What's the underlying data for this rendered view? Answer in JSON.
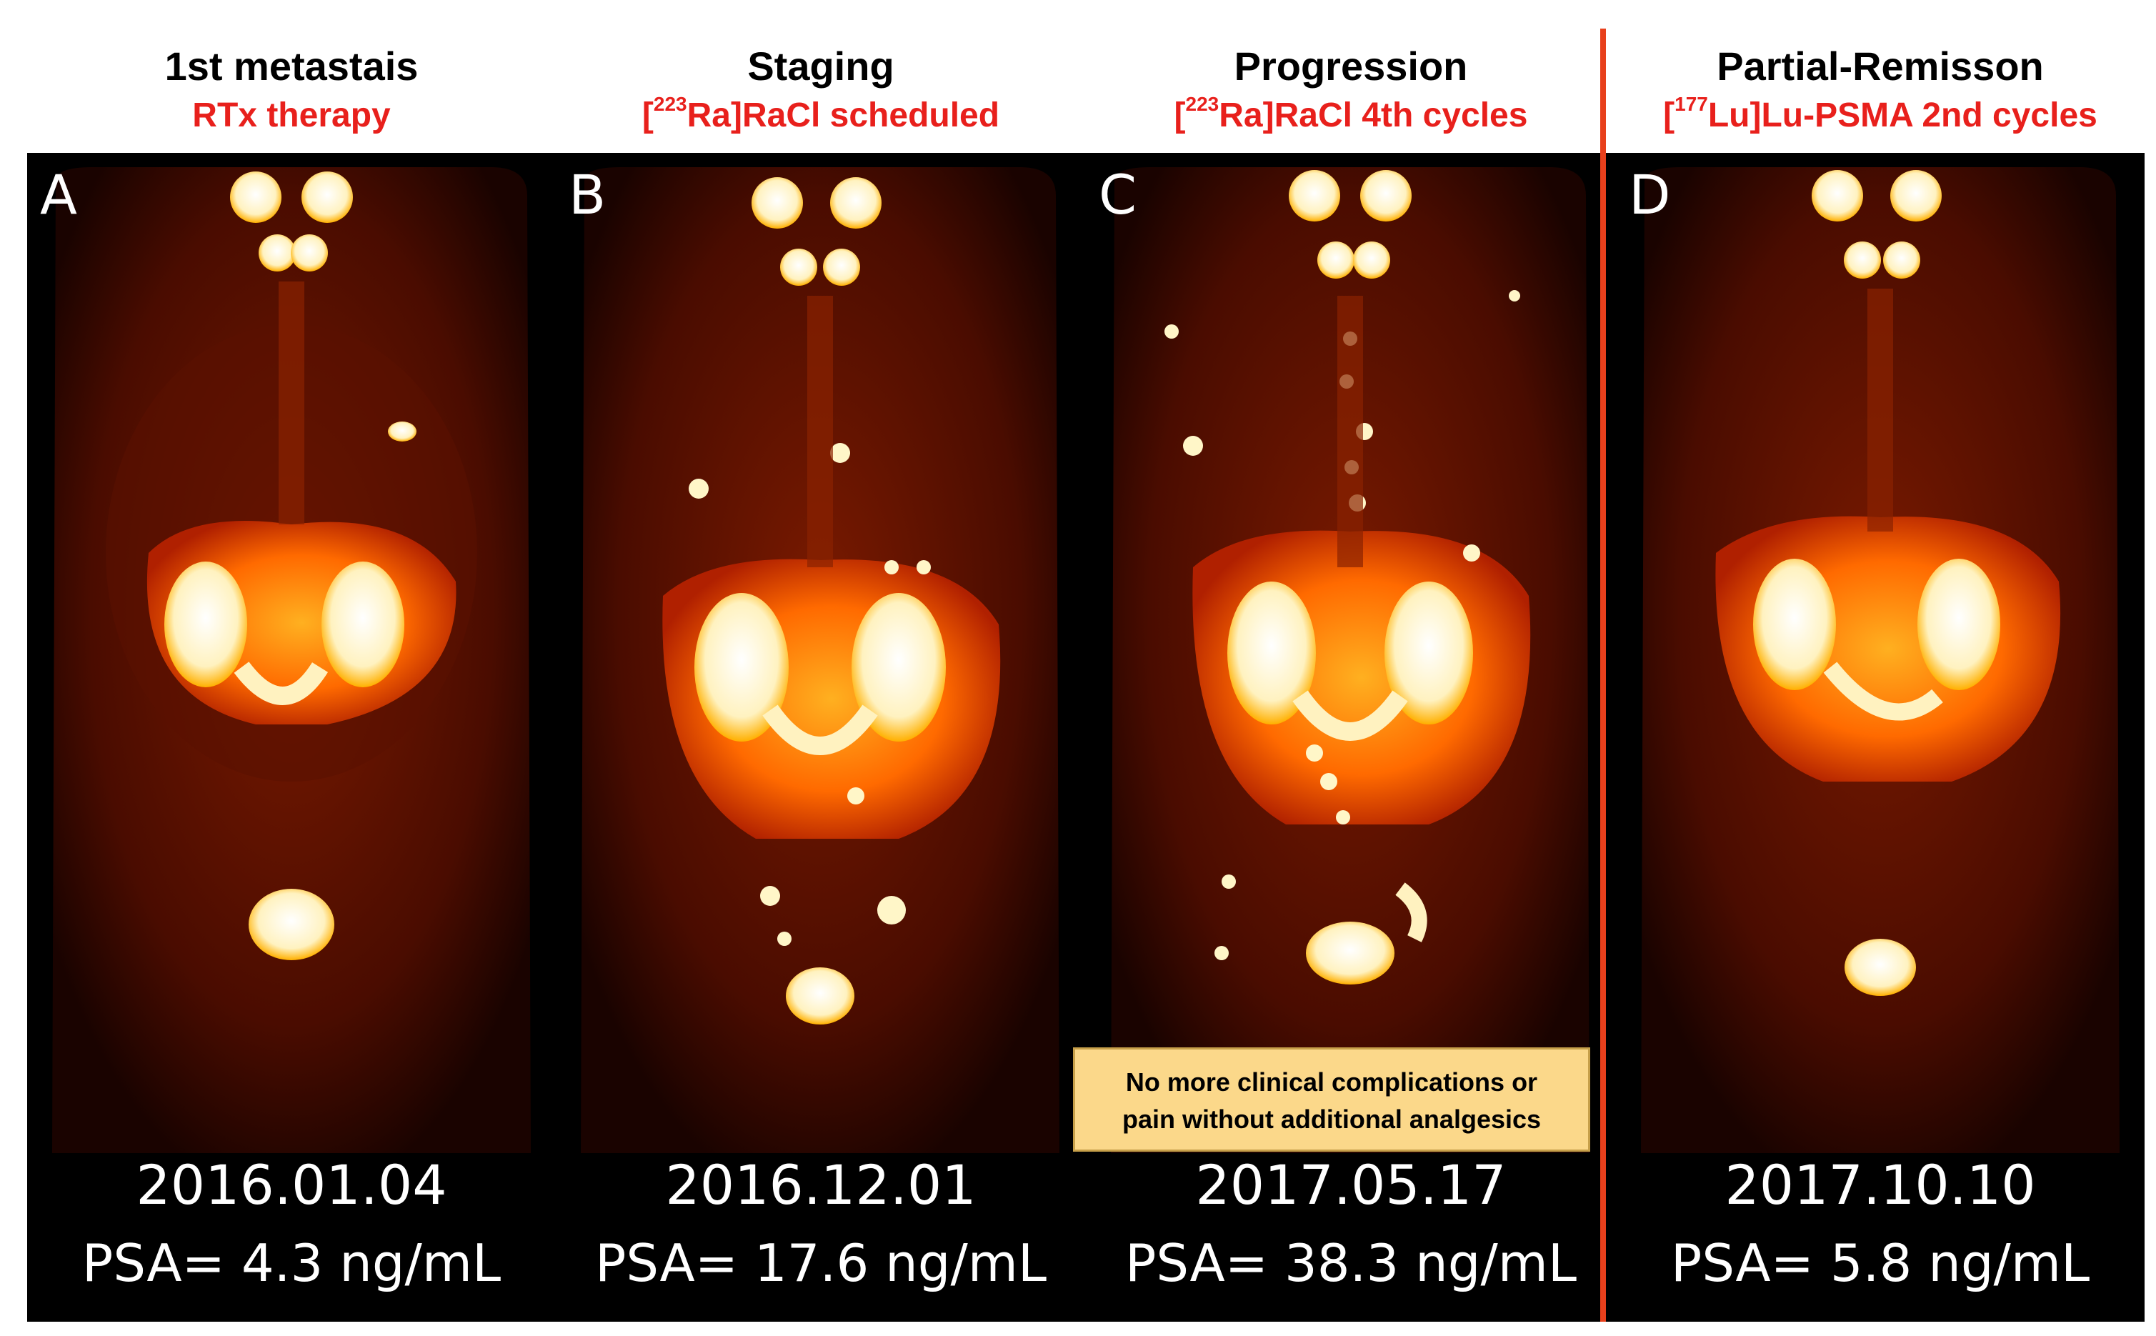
{
  "panels": [
    {
      "letter": "A",
      "title": "1st metastais",
      "subtitle_pre": "",
      "subtitle_sup": "",
      "subtitle_post": "RTx therapy",
      "date": "2016.01.04",
      "psa": "PSA= 4.3 ng/mL"
    },
    {
      "letter": "B",
      "title": "Staging",
      "subtitle_pre": "[",
      "subtitle_sup": "223",
      "subtitle_post": "Ra]RaCl scheduled",
      "date": "2016.12.01",
      "psa": "PSA= 17.6 ng/mL"
    },
    {
      "letter": "C",
      "title": "Progression",
      "subtitle_pre": "[",
      "subtitle_sup": "223",
      "subtitle_post": "Ra]RaCl 4th cycles",
      "date": "2017.05.17",
      "psa": "PSA= 38.3 ng/mL"
    },
    {
      "letter": "D",
      "title": "Partial-Remisson",
      "subtitle_pre": "[",
      "subtitle_sup": "177",
      "subtitle_post": "Lu]Lu-PSMA 2nd cycles",
      "date": "2017.10.10",
      "psa": "PSA= 5.8 ng/mL"
    }
  ],
  "note": {
    "line1": "No more clinical complications or",
    "line2": "pain without additional analgesics"
  },
  "colors": {
    "subtitle": "#e8201c",
    "divider": "#e8401c",
    "note_bg": "#fbd88a",
    "scan_bg": "#000000",
    "uptake_hot": "#fff6c8",
    "uptake_mid": "#ff8a00",
    "uptake_low": "#7a1500"
  }
}
